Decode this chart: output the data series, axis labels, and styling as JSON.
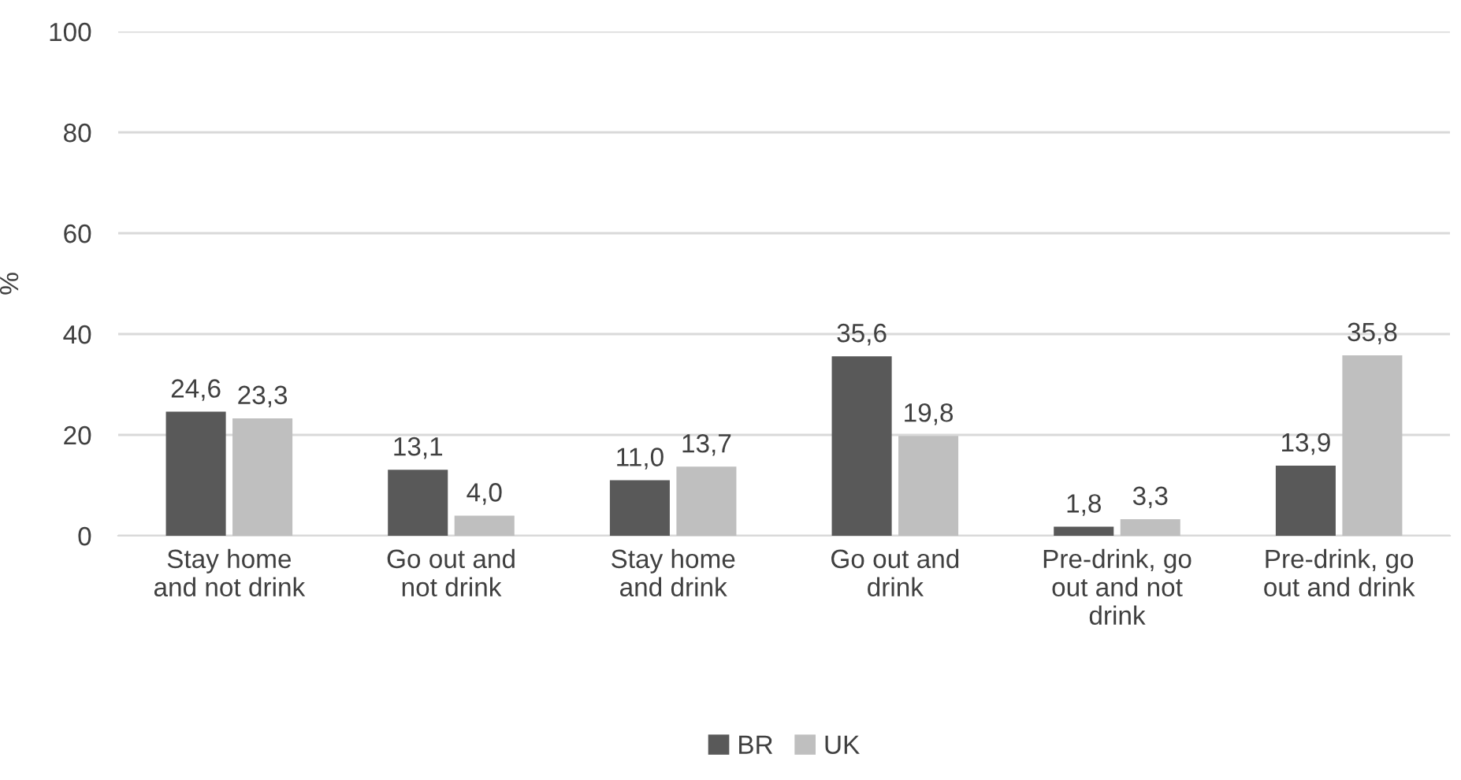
{
  "chart_data": {
    "type": "bar",
    "ylabel": "%",
    "categories": [
      "Stay home\nand not drink",
      "Go out and\nnot drink",
      "Stay home\nand drink",
      "Go out and\ndrink",
      "Pre-drink, go\nout and not\ndrink",
      "Pre-drink, go\nout and drink"
    ],
    "series": [
      {
        "name": "BR",
        "color": "#595959",
        "values": [
          24.6,
          13.1,
          11.0,
          35.6,
          1.8,
          13.9
        ],
        "value_labels": [
          "24,6",
          "13,1",
          "11,0",
          "35,6",
          "1,8",
          "13,9"
        ]
      },
      {
        "name": "UK",
        "color": "#bfbfbf",
        "values": [
          23.3,
          4.0,
          13.7,
          19.8,
          3.3,
          35.8
        ],
        "value_labels": [
          "23,3",
          "4,0",
          "13,7",
          "19,8",
          "3,3",
          "35,8"
        ]
      }
    ],
    "ylim": [
      0,
      100
    ],
    "yticks": [
      0,
      20,
      40,
      60,
      80,
      100
    ],
    "grid": "y",
    "legend": "bottom"
  }
}
